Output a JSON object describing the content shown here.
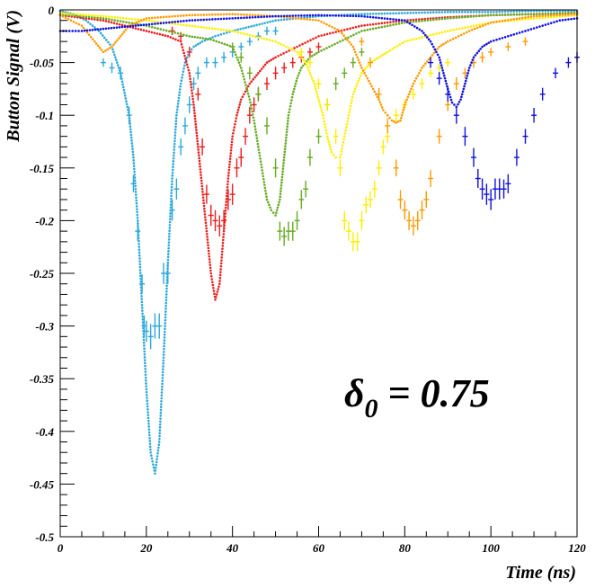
{
  "chart_data": {
    "type": "line",
    "title": "",
    "xlabel": "Time (ns)",
    "ylabel": "Button Signal (V)",
    "xlim": [
      0,
      120
    ],
    "ylim": [
      -0.5,
      0
    ],
    "xticks": [
      0,
      20,
      40,
      60,
      80,
      100,
      120
    ],
    "xtick_labels": [
      "0",
      "20",
      "40",
      "60",
      "80",
      "100",
      "120"
    ],
    "yticks": [
      0,
      -0.05,
      -0.1,
      -0.15,
      -0.2,
      -0.25,
      -0.3,
      -0.35,
      -0.4,
      -0.45,
      -0.5
    ],
    "ytick_labels": [
      "0",
      "-0.05",
      "-0.1",
      "-0.15",
      "-0.2",
      "-0.25",
      "-0.3",
      "-0.35",
      "-0.4",
      "-0.45",
      "-0.5"
    ],
    "grid": false,
    "annotation": {
      "symbol": "δ",
      "subscript": "0",
      "text": " = 0.75"
    },
    "series": [
      {
        "color": "#2aa8d8",
        "sim": {
          "x": [
            0,
            3,
            6,
            9,
            12,
            14,
            16,
            17,
            18,
            19,
            20,
            21,
            22,
            23,
            24,
            25,
            26,
            27,
            28,
            29,
            30,
            31,
            33,
            36,
            40,
            45,
            50,
            60,
            70,
            80,
            90,
            100,
            110,
            120
          ],
          "y": [
            -0.001,
            -0.004,
            -0.01,
            -0.02,
            -0.035,
            -0.06,
            -0.1,
            -0.14,
            -0.2,
            -0.28,
            -0.36,
            -0.42,
            -0.44,
            -0.41,
            -0.33,
            -0.24,
            -0.16,
            -0.1,
            -0.07,
            -0.05,
            -0.04,
            -0.035,
            -0.03,
            -0.025,
            -0.02,
            -0.015,
            -0.01,
            -0.006,
            -0.004,
            -0.003,
            -0.002,
            -0.002,
            -0.001,
            -0.001
          ]
        },
        "meas": {
          "x": [
            10,
            12,
            14,
            16,
            17,
            18,
            19,
            19.5,
            20,
            21,
            22,
            23,
            24,
            25,
            26,
            27,
            28,
            29,
            30,
            31,
            32,
            34,
            36,
            38,
            40,
            42,
            44,
            46,
            48,
            50
          ],
          "y": [
            -0.05,
            -0.055,
            -0.06,
            -0.1,
            -0.165,
            -0.21,
            -0.26,
            -0.3,
            -0.305,
            -0.31,
            -0.3,
            -0.3,
            -0.25,
            -0.25,
            -0.19,
            -0.17,
            -0.13,
            -0.11,
            -0.09,
            -0.07,
            -0.06,
            -0.05,
            -0.05,
            -0.045,
            -0.04,
            -0.035,
            -0.03,
            -0.025,
            -0.02,
            -0.02
          ],
          "err": [
            0.004,
            0.005,
            0.006,
            0.008,
            0.008,
            0.009,
            0.009,
            0.01,
            0.01,
            0.012,
            0.012,
            0.012,
            0.01,
            0.01,
            0.01,
            0.01,
            0.008,
            0.008,
            0.008,
            0.006,
            0.006,
            0.005,
            0.005,
            0.005,
            0.005,
            0.004,
            0.004,
            0.004,
            0.004,
            0.004
          ]
        }
      },
      {
        "color": "#ee1c1c",
        "sim": {
          "x": [
            0,
            10,
            15,
            20,
            25,
            28,
            30,
            31,
            32,
            33,
            34,
            35,
            36,
            37,
            38,
            39,
            40,
            41,
            42,
            44,
            46,
            48,
            50,
            55,
            60,
            70,
            80,
            90,
            100,
            110,
            120
          ],
          "y": [
            -0.005,
            -0.01,
            -0.015,
            -0.02,
            -0.025,
            -0.03,
            -0.06,
            -0.09,
            -0.13,
            -0.17,
            -0.21,
            -0.25,
            -0.275,
            -0.26,
            -0.21,
            -0.16,
            -0.12,
            -0.1,
            -0.085,
            -0.07,
            -0.06,
            -0.05,
            -0.045,
            -0.035,
            -0.025,
            -0.015,
            -0.01,
            -0.007,
            -0.005,
            -0.004,
            -0.003
          ]
        },
        "meas": {
          "x": [
            26,
            28,
            30,
            32,
            33,
            34,
            35,
            36,
            37,
            38,
            39,
            40,
            41,
            42,
            43,
            44,
            45,
            46,
            48,
            50,
            52,
            54,
            56,
            58,
            60
          ],
          "y": [
            -0.02,
            -0.025,
            -0.04,
            -0.08,
            -0.13,
            -0.175,
            -0.195,
            -0.2,
            -0.205,
            -0.2,
            -0.18,
            -0.175,
            -0.15,
            -0.14,
            -0.12,
            -0.1,
            -0.09,
            -0.08,
            -0.07,
            -0.06,
            -0.055,
            -0.05,
            -0.045,
            -0.04,
            -0.035
          ],
          "err": [
            0.004,
            0.004,
            0.005,
            0.006,
            0.008,
            0.009,
            0.01,
            0.01,
            0.01,
            0.01,
            0.01,
            0.01,
            0.009,
            0.009,
            0.008,
            0.008,
            0.007,
            0.006,
            0.006,
            0.006,
            0.005,
            0.005,
            0.005,
            0.004,
            0.004
          ]
        }
      },
      {
        "color": "#66aa22",
        "sim": {
          "x": [
            0,
            10,
            20,
            30,
            35,
            40,
            42,
            44,
            45,
            46,
            47,
            48,
            49,
            50,
            51,
            52,
            53,
            54,
            55,
            56,
            58,
            60,
            65,
            70,
            80,
            90,
            100,
            110,
            120
          ],
          "y": [
            -0.004,
            -0.008,
            -0.015,
            -0.025,
            -0.028,
            -0.035,
            -0.055,
            -0.085,
            -0.105,
            -0.13,
            -0.155,
            -0.18,
            -0.19,
            -0.195,
            -0.18,
            -0.14,
            -0.1,
            -0.08,
            -0.065,
            -0.055,
            -0.045,
            -0.04,
            -0.03,
            -0.02,
            -0.012,
            -0.008,
            -0.005,
            -0.004,
            -0.003
          ]
        },
        "meas": {
          "x": [
            40,
            42,
            44,
            46,
            48,
            50,
            51,
            52,
            53,
            54,
            55,
            56,
            57,
            58,
            60,
            62,
            64,
            66,
            68,
            70
          ],
          "y": [
            -0.035,
            -0.045,
            -0.06,
            -0.08,
            -0.11,
            -0.15,
            -0.21,
            -0.215,
            -0.21,
            -0.21,
            -0.2,
            -0.18,
            -0.17,
            -0.14,
            -0.12,
            -0.09,
            -0.07,
            -0.06,
            -0.05,
            -0.04
          ],
          "err": [
            0.004,
            0.005,
            0.006,
            0.007,
            0.008,
            0.009,
            0.009,
            0.009,
            0.009,
            0.009,
            0.009,
            0.009,
            0.008,
            0.008,
            0.007,
            0.006,
            0.006,
            0.005,
            0.005,
            0.004
          ]
        }
      },
      {
        "color": "#ffee00",
        "sim": {
          "x": [
            0,
            10,
            20,
            30,
            40,
            50,
            55,
            57,
            59,
            60,
            61,
            62,
            63,
            64,
            65,
            66,
            67,
            68,
            69,
            70,
            72,
            74,
            76,
            80,
            90,
            100,
            110,
            120
          ],
          "y": [
            -0.003,
            -0.006,
            -0.01,
            -0.015,
            -0.02,
            -0.03,
            -0.04,
            -0.05,
            -0.07,
            -0.085,
            -0.1,
            -0.12,
            -0.135,
            -0.14,
            -0.14,
            -0.12,
            -0.1,
            -0.08,
            -0.07,
            -0.06,
            -0.05,
            -0.045,
            -0.04,
            -0.03,
            -0.02,
            -0.012,
            -0.008,
            -0.005
          ]
        },
        "meas": {
          "x": [
            56,
            58,
            60,
            62,
            64,
            65,
            66,
            67,
            68,
            69,
            70,
            71,
            72,
            73,
            74,
            75,
            76,
            78,
            80,
            82,
            84,
            86,
            88,
            90
          ],
          "y": [
            -0.04,
            -0.05,
            -0.07,
            -0.09,
            -0.12,
            -0.15,
            -0.2,
            -0.21,
            -0.22,
            -0.22,
            -0.2,
            -0.185,
            -0.18,
            -0.17,
            -0.15,
            -0.13,
            -0.12,
            -0.1,
            -0.09,
            -0.08,
            -0.07,
            -0.06,
            -0.055,
            -0.05
          ],
          "err": [
            0.004,
            0.005,
            0.005,
            0.006,
            0.007,
            0.008,
            0.009,
            0.009,
            0.009,
            0.009,
            0.009,
            0.008,
            0.008,
            0.008,
            0.007,
            0.007,
            0.006,
            0.006,
            0.005,
            0.005,
            0.005,
            0.004,
            0.004,
            0.004
          ]
        }
      },
      {
        "color": "#ff9a00",
        "sim": {
          "x": [
            0,
            5,
            8,
            10,
            12,
            14,
            16,
            20,
            30,
            40,
            50,
            60,
            65,
            68,
            70,
            72,
            74,
            75,
            76,
            77,
            78,
            79,
            80,
            82,
            84,
            86,
            88,
            90,
            95,
            100,
            110,
            120
          ],
          "y": [
            -0.005,
            -0.015,
            -0.03,
            -0.04,
            -0.035,
            -0.025,
            -0.015,
            -0.008,
            -0.005,
            -0.004,
            -0.006,
            -0.01,
            -0.02,
            -0.035,
            -0.055,
            -0.07,
            -0.085,
            -0.095,
            -0.1,
            -0.105,
            -0.107,
            -0.105,
            -0.09,
            -0.07,
            -0.055,
            -0.045,
            -0.035,
            -0.03,
            -0.02,
            -0.012,
            -0.006,
            -0.004
          ]
        },
        "meas": {
          "x": [
            70,
            72,
            74,
            76,
            78,
            79,
            80,
            81,
            82,
            83,
            84,
            85,
            86,
            88,
            90,
            92,
            94,
            96,
            98,
            100,
            104,
            108
          ],
          "y": [
            -0.03,
            -0.05,
            -0.08,
            -0.11,
            -0.15,
            -0.18,
            -0.19,
            -0.2,
            -0.205,
            -0.2,
            -0.19,
            -0.18,
            -0.16,
            -0.12,
            -0.09,
            -0.07,
            -0.06,
            -0.05,
            -0.045,
            -0.04,
            -0.035,
            -0.03
          ],
          "err": [
            0.004,
            0.005,
            0.006,
            0.007,
            0.008,
            0.009,
            0.009,
            0.009,
            0.009,
            0.009,
            0.009,
            0.008,
            0.008,
            0.007,
            0.006,
            0.006,
            0.005,
            0.005,
            0.005,
            0.004,
            0.004,
            0.004
          ]
        }
      },
      {
        "color": "#1010dd",
        "sim": {
          "x": [
            0,
            5,
            10,
            15,
            20,
            30,
            40,
            50,
            60,
            70,
            80,
            84,
            86,
            88,
            89,
            90,
            91,
            92,
            93,
            94,
            95,
            96,
            98,
            100,
            104,
            108,
            112,
            116,
            120
          ],
          "y": [
            -0.02,
            -0.02,
            -0.018,
            -0.016,
            -0.014,
            -0.01,
            -0.008,
            -0.006,
            -0.005,
            -0.006,
            -0.01,
            -0.02,
            -0.03,
            -0.045,
            -0.06,
            -0.075,
            -0.088,
            -0.092,
            -0.085,
            -0.07,
            -0.055,
            -0.045,
            -0.035,
            -0.03,
            -0.025,
            -0.02,
            -0.015,
            -0.01,
            -0.008
          ]
        },
        "meas": {
          "x": [
            86,
            88,
            90,
            92,
            94,
            96,
            97,
            98,
            99,
            100,
            101,
            102,
            103,
            104,
            106,
            108,
            110,
            112,
            115,
            118,
            120
          ],
          "y": [
            -0.05,
            -0.065,
            -0.08,
            -0.1,
            -0.12,
            -0.14,
            -0.16,
            -0.17,
            -0.175,
            -0.18,
            -0.17,
            -0.17,
            -0.17,
            -0.165,
            -0.14,
            -0.12,
            -0.1,
            -0.08,
            -0.06,
            -0.05,
            -0.045
          ],
          "err": [
            0.005,
            0.006,
            0.007,
            0.008,
            0.009,
            0.009,
            0.009,
            0.01,
            0.01,
            0.01,
            0.01,
            0.01,
            0.009,
            0.009,
            0.008,
            0.007,
            0.007,
            0.006,
            0.005,
            0.005,
            0.005
          ]
        }
      }
    ]
  }
}
